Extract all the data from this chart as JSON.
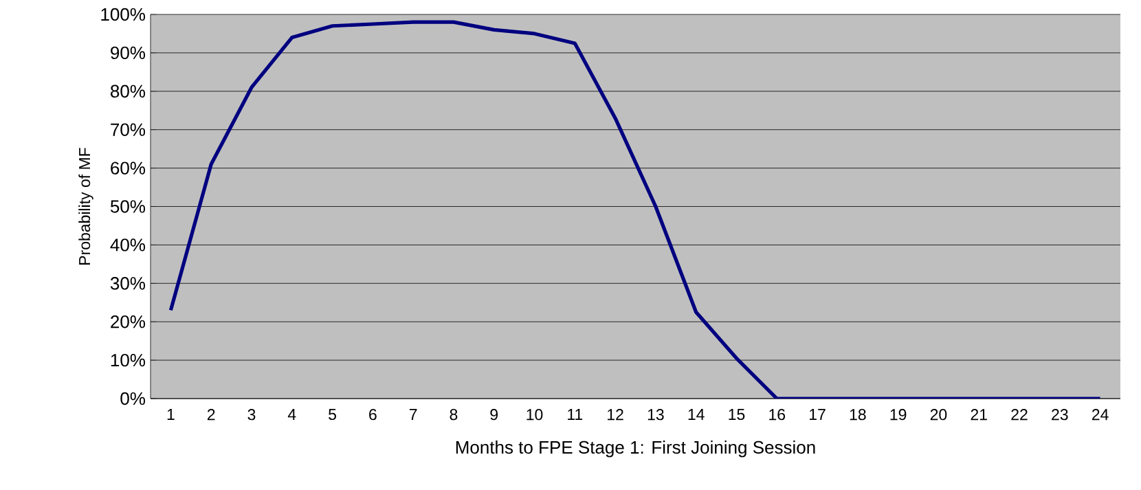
{
  "chart_data": {
    "type": "line",
    "xlabel": "Months to FPE Stage 1: First Joining Session",
    "ylabel": "Probability of MF",
    "categories": [
      "1",
      "2",
      "3",
      "4",
      "5",
      "6",
      "7",
      "8",
      "9",
      "10",
      "11",
      "12",
      "13",
      "14",
      "15",
      "16",
      "17",
      "18",
      "19",
      "20",
      "21",
      "22",
      "23",
      "24"
    ],
    "series": [
      {
        "color": "#000080",
        "values": [
          23,
          61,
          81,
          94,
          97,
          97.5,
          98,
          98,
          96,
          95,
          92.5,
          73,
          50,
          22.5,
          10.5,
          0,
          0,
          0,
          0,
          0,
          0,
          0,
          0,
          0
        ]
      }
    ],
    "ylim": [
      0,
      100
    ],
    "yticks": [
      {
        "value": 0,
        "label": "0%"
      },
      {
        "value": 10,
        "label": "10%"
      },
      {
        "value": 20,
        "label": "20%"
      },
      {
        "value": 30,
        "label": "30%"
      },
      {
        "value": 40,
        "label": "40%"
      },
      {
        "value": 50,
        "label": "50%"
      },
      {
        "value": 60,
        "label": "60%"
      },
      {
        "value": 70,
        "label": "70%"
      },
      {
        "value": 80,
        "label": "80%"
      },
      {
        "value": 90,
        "label": "90%"
      },
      {
        "value": 100,
        "label": "100%"
      }
    ],
    "grid": "y",
    "marker": "none",
    "line_style": "solid"
  }
}
